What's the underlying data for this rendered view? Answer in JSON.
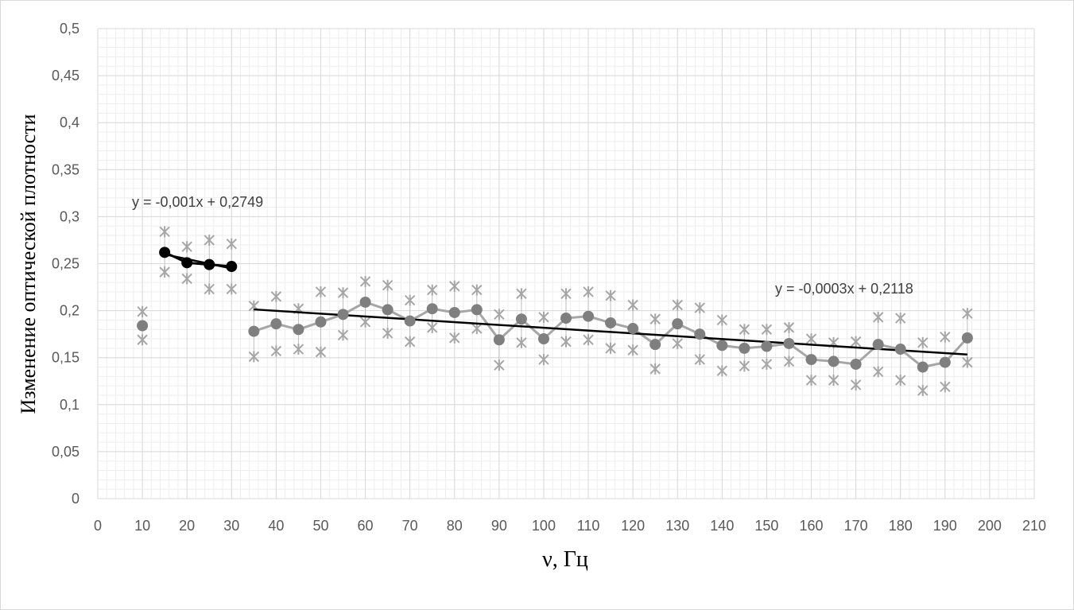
{
  "chart_data": {
    "type": "scatter",
    "xlabel": "ν, Гц",
    "ylabel": "Изменение оптической плотности",
    "xlim": [
      0,
      210
    ],
    "ylim": [
      0,
      0.5
    ],
    "x_ticks": [
      "0",
      "10",
      "20",
      "30",
      "40",
      "50",
      "60",
      "70",
      "80",
      "90",
      "100",
      "110",
      "120",
      "130",
      "140",
      "150",
      "160",
      "170",
      "180",
      "190",
      "200",
      "210"
    ],
    "y_ticks": [
      "0",
      "0,05",
      "0,1",
      "0,15",
      "0,2",
      "0,25",
      "0,3",
      "0,35",
      "0,4",
      "0,45",
      "0,5"
    ],
    "grid": true,
    "colors": {
      "main": "#7f7f7f",
      "highlight": "#000000",
      "bounds": "#a6a6a6",
      "trend": "#000000"
    },
    "isolated_point": {
      "x": 10,
      "y": 0.184,
      "upper": 0.199,
      "lower": 0.169
    },
    "series": [
      {
        "x": [
          15,
          20,
          25,
          30
        ],
        "y": [
          0.262,
          0.251,
          0.249,
          0.247
        ],
        "upper": [
          0.284,
          0.268,
          0.275,
          0.271
        ],
        "lower": [
          0.241,
          0.234,
          0.223,
          0.223
        ]
      },
      {
        "x": [
          35,
          40,
          45,
          50,
          55,
          60,
          65,
          70,
          75,
          80,
          85,
          90,
          95,
          100,
          105,
          110,
          115,
          120,
          125,
          130,
          135,
          140,
          145,
          150,
          155,
          160,
          165,
          170,
          175,
          180,
          185,
          190,
          195
        ],
        "y": [
          0.178,
          0.186,
          0.18,
          0.188,
          0.196,
          0.209,
          0.201,
          0.189,
          0.202,
          0.198,
          0.201,
          0.169,
          0.191,
          0.17,
          0.192,
          0.194,
          0.187,
          0.181,
          0.164,
          0.186,
          0.175,
          0.163,
          0.16,
          0.162,
          0.165,
          0.148,
          0.146,
          0.143,
          0.164,
          0.159,
          0.14,
          0.145,
          0.171
        ],
        "upper": [
          0.205,
          0.215,
          0.202,
          0.22,
          0.219,
          0.231,
          0.227,
          0.211,
          0.222,
          0.226,
          0.222,
          0.196,
          0.218,
          0.193,
          0.218,
          0.22,
          0.216,
          0.206,
          0.191,
          0.206,
          0.203,
          0.19,
          0.18,
          0.18,
          0.182,
          0.17,
          0.166,
          0.167,
          0.193,
          0.192,
          0.166,
          0.172,
          0.197
        ],
        "lower": [
          0.151,
          0.157,
          0.159,
          0.156,
          0.174,
          0.188,
          0.176,
          0.167,
          0.182,
          0.171,
          0.181,
          0.142,
          0.166,
          0.148,
          0.167,
          0.169,
          0.16,
          0.158,
          0.138,
          0.165,
          0.148,
          0.136,
          0.141,
          0.143,
          0.146,
          0.126,
          0.126,
          0.121,
          0.135,
          0.126,
          0.115,
          0.119,
          0.145
        ]
      }
    ],
    "trendlines": [
      {
        "equation": "y = -0,001x + 0,2749",
        "slope": -0.001,
        "intercept": 0.2749,
        "x_range": [
          15,
          30
        ]
      },
      {
        "equation": "y = -0,0003x + 0,2118",
        "slope": -0.0003,
        "intercept": 0.2118,
        "x_range": [
          35,
          195
        ]
      }
    ]
  }
}
